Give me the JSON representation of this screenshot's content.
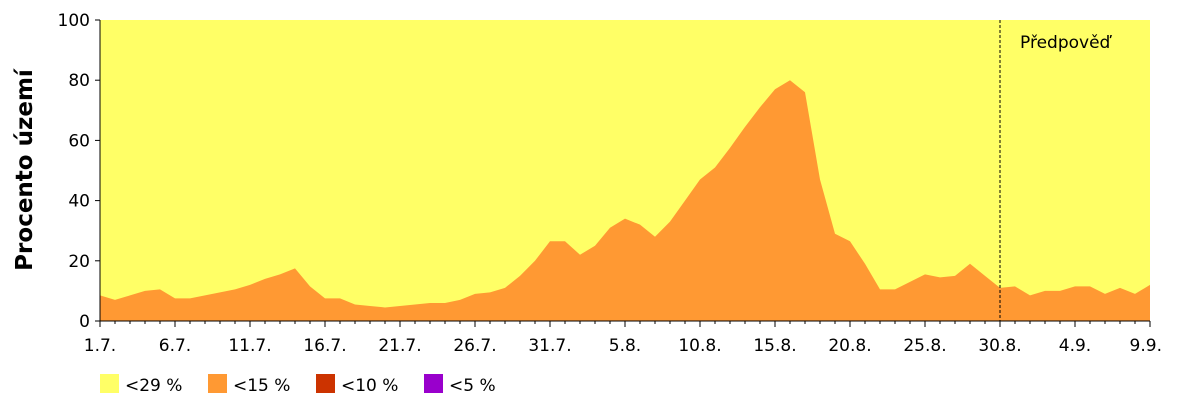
{
  "chart_data": {
    "type": "area",
    "ylabel": "Procento území",
    "ylim": [
      0,
      100
    ],
    "yticks": [
      0,
      20,
      40,
      60,
      80,
      100
    ],
    "x_dates": [
      "1.7.",
      "2.7.",
      "3.7.",
      "4.7.",
      "5.7.",
      "6.7.",
      "7.7.",
      "8.7.",
      "9.7.",
      "10.7.",
      "11.7.",
      "12.7.",
      "13.7.",
      "14.7.",
      "15.7.",
      "16.7.",
      "17.7.",
      "18.7.",
      "19.7.",
      "20.7.",
      "21.7.",
      "22.7.",
      "23.7.",
      "24.7.",
      "25.7.",
      "26.7.",
      "27.7.",
      "28.7.",
      "29.7.",
      "30.7.",
      "31.7.",
      "1.8.",
      "2.8.",
      "3.8.",
      "4.8.",
      "5.8.",
      "6.8.",
      "7.8.",
      "8.8.",
      "9.8.",
      "10.8.",
      "11.8.",
      "12.8.",
      "13.8.",
      "14.8.",
      "15.8.",
      "16.8.",
      "17.8.",
      "18.8.",
      "19.8.",
      "20.8.",
      "21.8.",
      "22.8.",
      "23.8.",
      "24.8.",
      "25.8.",
      "26.8.",
      "27.8.",
      "28.8.",
      "29.8.",
      "30.8.",
      "31.8.",
      "1.9.",
      "2.9.",
      "3.9.",
      "4.9.",
      "5.9.",
      "6.9.",
      "7.9.",
      "8.9.",
      "9.9."
    ],
    "x_tick_labels": [
      "1.7.",
      "6.7.",
      "11.7.",
      "16.7.",
      "21.7.",
      "26.7.",
      "31.7.",
      "5.8.",
      "10.8.",
      "15.8.",
      "20.8.",
      "25.8.",
      "30.8.",
      "4.9.",
      "9.9."
    ],
    "series": [
      {
        "name": "<29 %",
        "color": "#ffff66",
        "values": [
          100,
          100,
          100,
          100,
          100,
          100,
          100,
          100,
          100,
          100,
          100,
          100,
          100,
          100,
          100,
          100,
          100,
          100,
          100,
          100,
          100,
          100,
          100,
          100,
          100,
          100,
          100,
          100,
          100,
          100,
          100,
          100,
          100,
          100,
          100,
          100,
          100,
          100,
          100,
          100,
          100,
          100,
          100,
          100,
          100,
          100,
          100,
          100,
          100,
          100,
          100,
          100,
          100,
          100,
          100,
          100,
          100,
          100,
          100,
          100,
          100,
          100,
          100,
          100,
          100,
          100,
          100,
          100,
          100,
          100,
          100
        ]
      },
      {
        "name": "<15 %",
        "color": "#ff9933",
        "values": [
          8.5,
          7,
          8.5,
          10,
          10.5,
          7.5,
          7.5,
          8.5,
          9.5,
          10.5,
          12,
          14,
          15.5,
          17.5,
          11.5,
          7.5,
          7.5,
          5.5,
          5,
          4.5,
          5,
          5.5,
          6,
          6,
          7,
          9,
          9.5,
          11,
          15,
          20,
          26.5,
          26.5,
          22,
          25,
          31,
          34,
          32,
          28,
          33,
          40,
          47,
          51,
          57.5,
          64.5,
          71,
          77,
          80,
          76,
          47,
          29,
          26.5,
          19,
          10.5,
          10.5,
          13,
          15.5,
          14.5,
          15,
          19,
          15,
          11,
          11.5,
          8.5,
          10,
          10,
          11.5,
          11.5,
          9,
          11,
          9,
          12
        ]
      },
      {
        "name": "<10 %",
        "color": "#cc3300",
        "values": [
          0,
          0,
          0,
          0,
          0,
          0,
          0,
          0,
          0,
          0,
          0,
          0,
          0,
          0,
          0,
          0,
          0,
          0,
          0,
          0,
          0,
          0,
          0,
          0,
          0,
          0,
          0,
          0,
          0,
          0,
          0,
          0,
          0,
          0,
          0,
          0,
          0,
          0,
          0,
          0,
          0,
          0,
          0,
          0,
          0,
          0,
          0,
          0,
          0,
          0,
          0,
          0,
          0,
          0,
          0,
          0,
          0,
          0,
          0,
          0,
          0,
          0,
          0,
          0,
          0,
          0,
          0,
          0,
          0,
          0,
          0
        ]
      },
      {
        "name": "<5 %",
        "color": "#9900cc",
        "values": [
          0,
          0,
          0,
          0,
          0,
          0,
          0,
          0,
          0,
          0,
          0,
          0,
          0,
          0,
          0,
          0,
          0,
          0,
          0,
          0,
          0,
          0,
          0,
          0,
          0,
          0,
          0,
          0,
          0,
          0,
          0,
          0,
          0,
          0,
          0,
          0,
          0,
          0,
          0,
          0,
          0,
          0,
          0,
          0,
          0,
          0,
          0,
          0,
          0,
          0,
          0,
          0,
          0,
          0,
          0,
          0,
          0,
          0,
          0,
          0,
          0,
          0,
          0,
          0,
          0,
          0,
          0,
          0,
          0,
          0,
          0
        ]
      }
    ],
    "forecast": {
      "label": "Předpověď",
      "start": "30.8."
    },
    "legend": {
      "position": "bottom-left",
      "items": [
        {
          "label": "<29 %",
          "color": "#ffff66"
        },
        {
          "label": "<15 %",
          "color": "#ff9933"
        },
        {
          "label": "<10 %",
          "color": "#cc3300"
        },
        {
          "label": "<5 %",
          "color": "#9900cc"
        }
      ]
    },
    "grid": false
  }
}
